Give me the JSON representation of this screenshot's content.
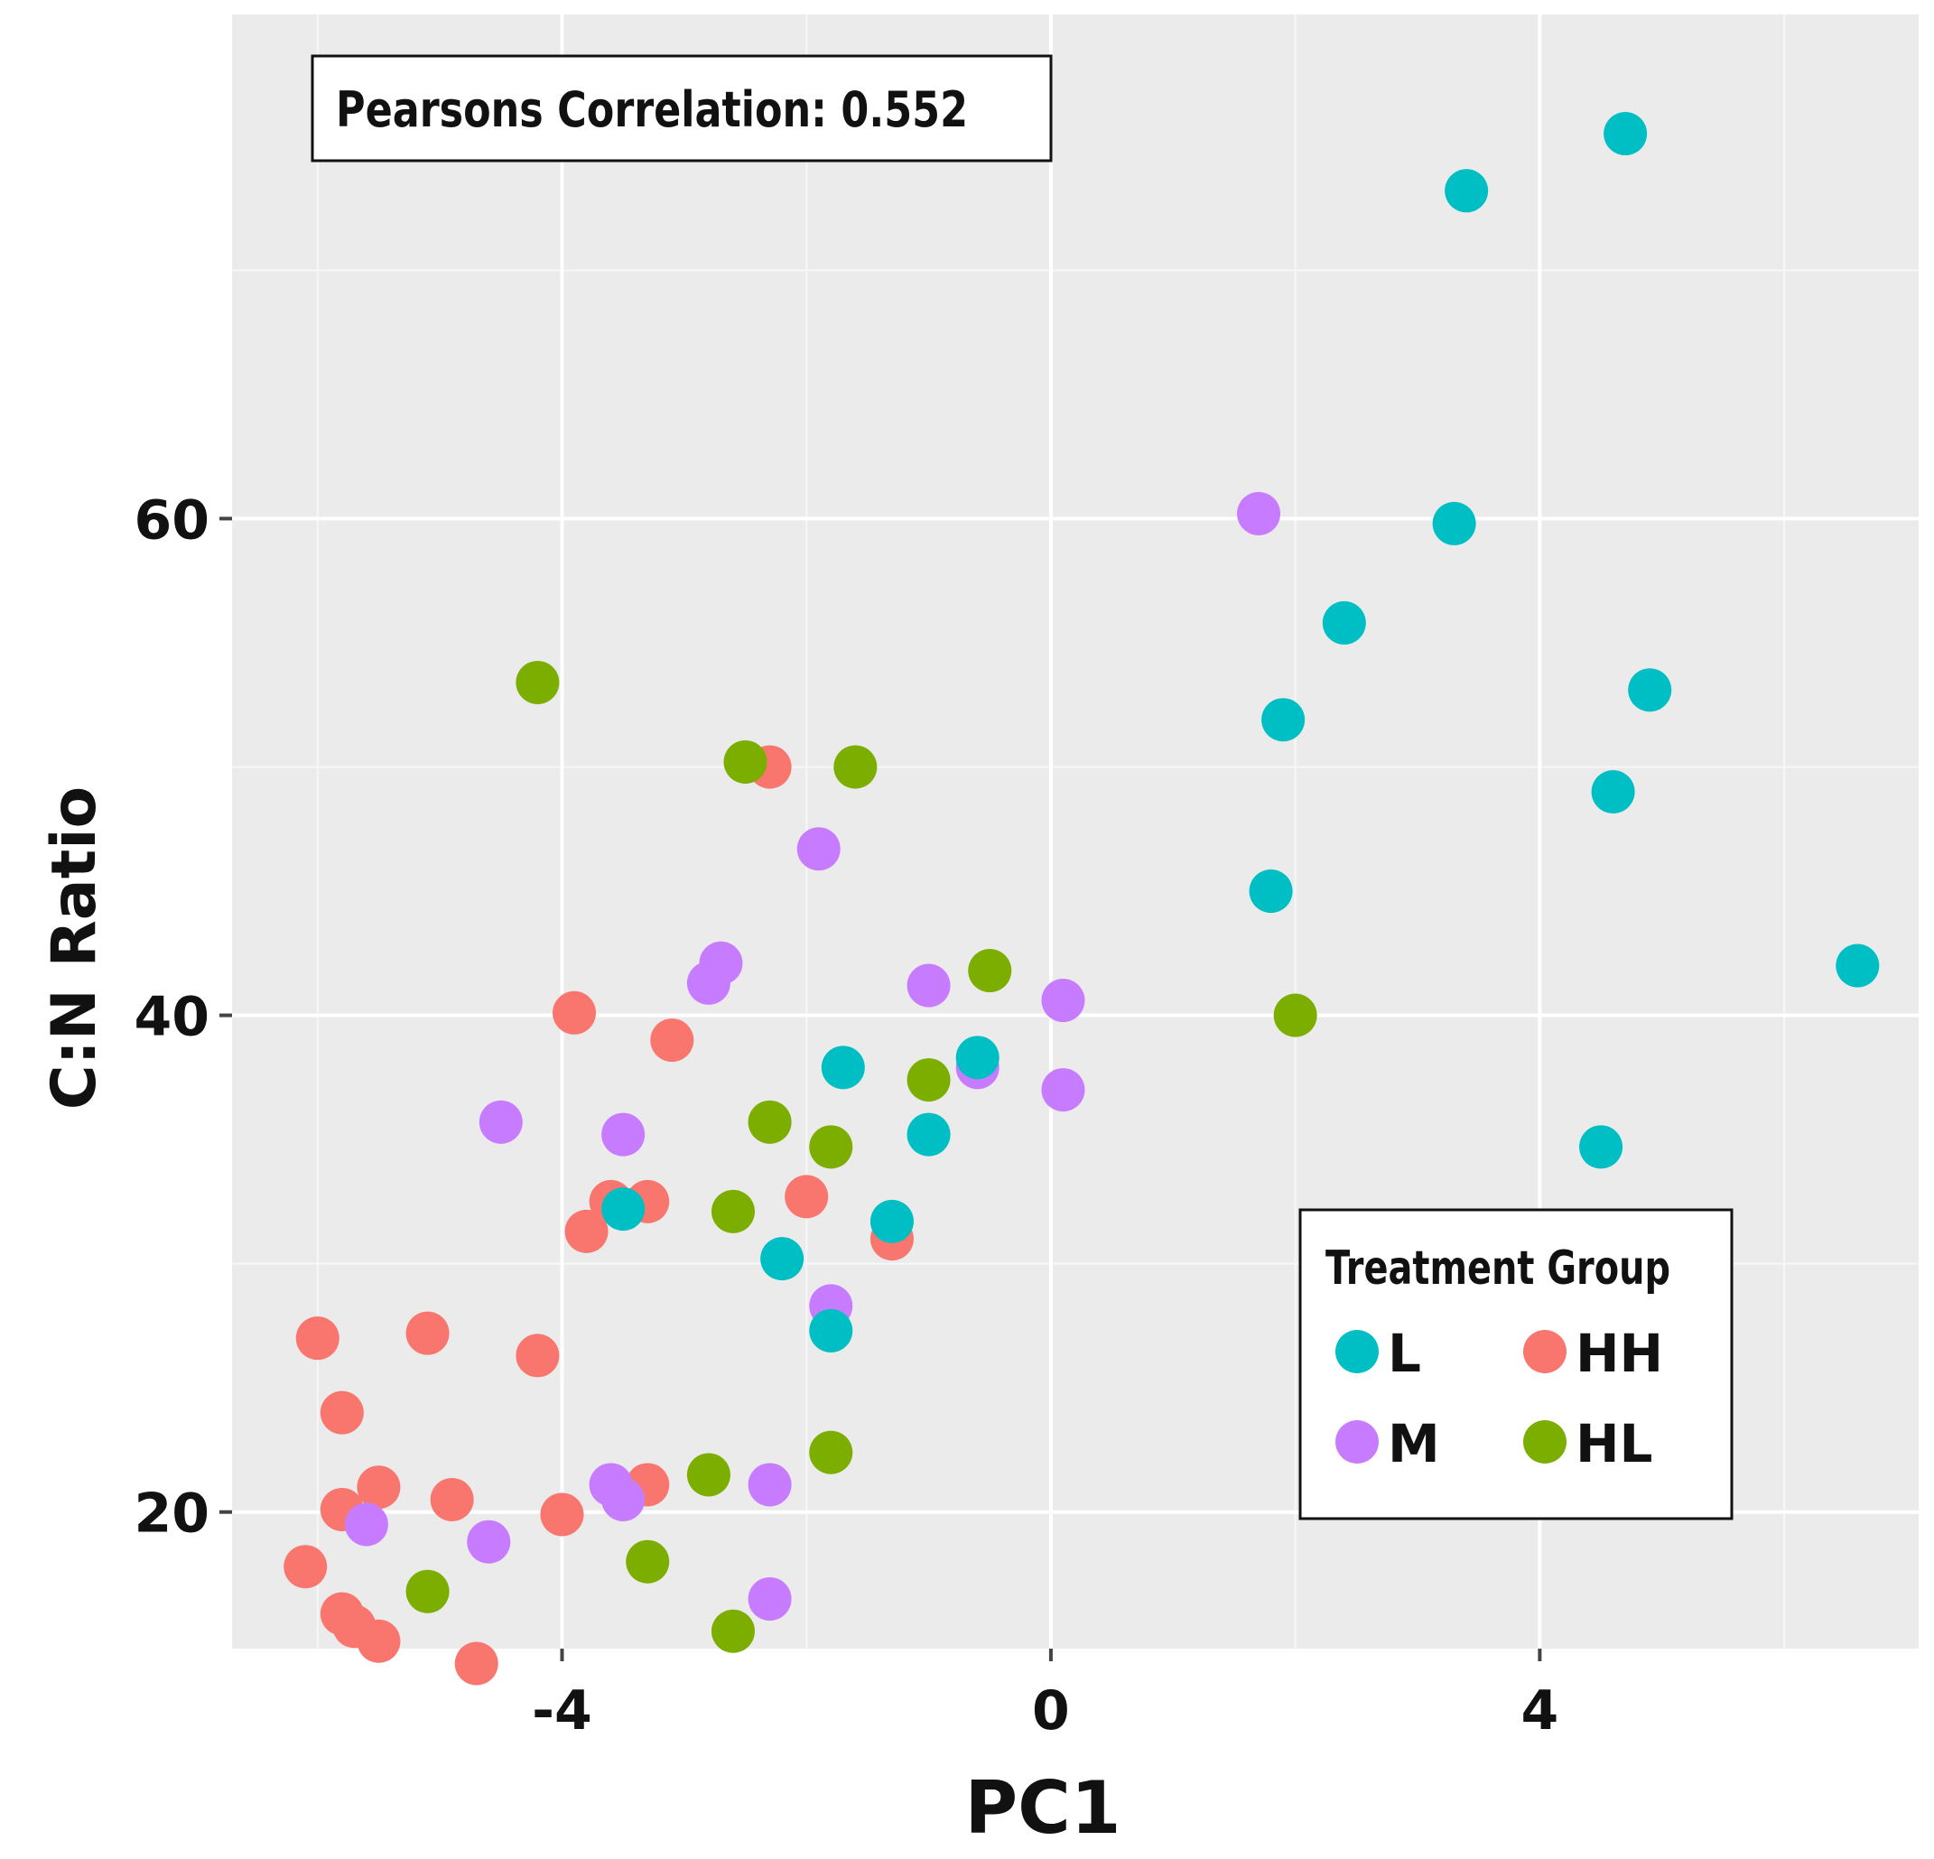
{
  "chart_data": {
    "type": "scatter",
    "title": "",
    "xlabel": "PC1",
    "ylabel": "C:N Ratio",
    "xlim": [
      -6.7,
      7.1
    ],
    "ylim": [
      14.5,
      80.3
    ],
    "xticks": [
      -4,
      0,
      4
    ],
    "xtick_labels": [
      "-4",
      "0",
      "4"
    ],
    "yticks": [
      20,
      40,
      60
    ],
    "ytick_labels": [
      "20",
      "40",
      "60"
    ],
    "grid": true,
    "annotation": "Pearsons Correlation: 0.552",
    "legend": {
      "title": "Treatment Group",
      "position": "bottom-right",
      "entries": [
        "L",
        "HH",
        "M",
        "HL"
      ]
    },
    "series": [
      {
        "name": "HH",
        "color": "#F8766D",
        "points": [
          [
            -2.3,
            50
          ],
          [
            -3.9,
            40.1
          ],
          [
            -3.1,
            39
          ],
          [
            -3.6,
            32.5
          ],
          [
            -3.3,
            32.5
          ],
          [
            -3.8,
            31.3
          ],
          [
            -2.0,
            32.7
          ],
          [
            -1.3,
            31
          ],
          [
            -6.0,
            27
          ],
          [
            -5.1,
            27.2
          ],
          [
            -4.2,
            26.3
          ],
          [
            -5.8,
            24
          ],
          [
            -5.5,
            21
          ],
          [
            -5.8,
            20.1
          ],
          [
            -4.9,
            20.5
          ],
          [
            -4.0,
            19.9
          ],
          [
            -3.3,
            21.1
          ],
          [
            -6.1,
            17.8
          ],
          [
            -5.8,
            15.9
          ],
          [
            -5.7,
            15.4
          ],
          [
            -5.5,
            14.8
          ],
          [
            -4.7,
            13.9
          ]
        ]
      },
      {
        "name": "HL",
        "color": "#7CAE00",
        "points": [
          [
            -4.2,
            53.4
          ],
          [
            -2.5,
            50.2
          ],
          [
            -1.6,
            50
          ],
          [
            -0.5,
            41.8
          ],
          [
            2.0,
            40
          ],
          [
            -1.0,
            37.4
          ],
          [
            -2.3,
            35.7
          ],
          [
            -1.8,
            34.7
          ],
          [
            -2.6,
            32.1
          ],
          [
            -1.8,
            22.4
          ],
          [
            -2.8,
            21.5
          ],
          [
            -3.3,
            18
          ],
          [
            -5.1,
            16.8
          ],
          [
            -2.6,
            15.2
          ]
        ]
      },
      {
        "name": "M",
        "color": "#C77CFF",
        "points": [
          [
            1.7,
            60.2
          ],
          [
            -1.9,
            46.7
          ],
          [
            -2.7,
            42.1
          ],
          [
            -2.8,
            41.3
          ],
          [
            -1.0,
            41.2
          ],
          [
            0.1,
            40.6
          ],
          [
            -0.6,
            37.9
          ],
          [
            0.1,
            37
          ],
          [
            -4.5,
            35.7
          ],
          [
            -3.5,
            35.2
          ],
          [
            -1.8,
            28.3
          ],
          [
            -3.6,
            21.1
          ],
          [
            -3.5,
            20.5
          ],
          [
            -2.3,
            21.1
          ],
          [
            -5.6,
            19.5
          ],
          [
            -4.6,
            18.8
          ],
          [
            -2.3,
            16.5
          ]
        ]
      },
      {
        "name": "L",
        "color": "#00BFC4",
        "points": [
          [
            4.7,
            75.5
          ],
          [
            3.4,
            73.2
          ],
          [
            3.3,
            59.8
          ],
          [
            2.4,
            55.8
          ],
          [
            4.9,
            53.1
          ],
          [
            1.9,
            51.9
          ],
          [
            4.6,
            49
          ],
          [
            1.8,
            45
          ],
          [
            6.6,
            42
          ],
          [
            -0.6,
            38.3
          ],
          [
            -1.7,
            37.9
          ],
          [
            -1.0,
            35.2
          ],
          [
            -3.5,
            32.2
          ],
          [
            -1.3,
            31.7
          ],
          [
            -2.2,
            30.2
          ],
          [
            -1.8,
            27.3
          ],
          [
            4.5,
            34.7
          ]
        ]
      }
    ]
  }
}
